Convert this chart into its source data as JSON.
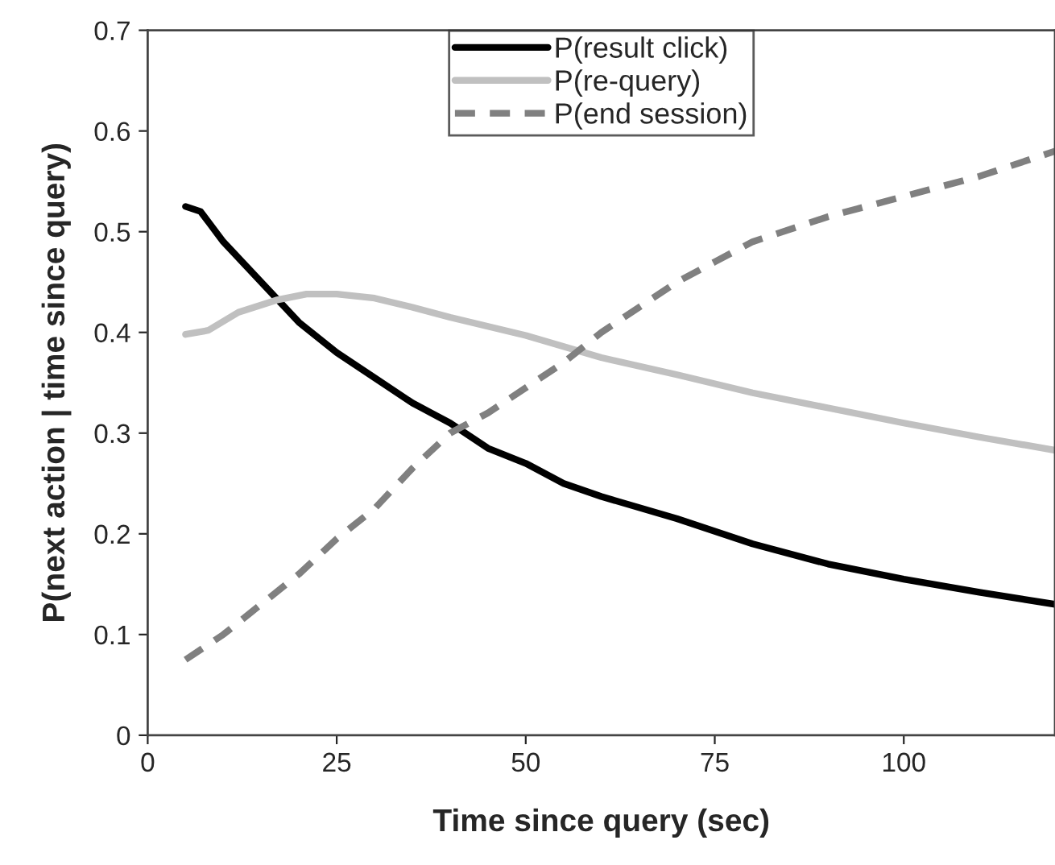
{
  "chart_data": {
    "type": "line",
    "xlabel": "Time since query (sec)",
    "ylabel": "P(next action | time since query)",
    "xlim": [
      0,
      120
    ],
    "xticks": [
      0,
      25,
      50,
      75,
      100
    ],
    "ylim": [
      0,
      0.7
    ],
    "yticks": [
      0,
      0.1,
      0.2,
      0.3,
      0.4,
      0.5,
      0.6,
      0.7
    ],
    "grid": false,
    "legend": "top",
    "marker": "none",
    "series": [
      {
        "name": "P(result click)",
        "color": "#000000",
        "line_style": "solid",
        "x": [
          5,
          7,
          10,
          15,
          20,
          25,
          30,
          35,
          40,
          45,
          50,
          55,
          60,
          70,
          80,
          90,
          100,
          110,
          120
        ],
        "values": [
          0.525,
          0.52,
          0.49,
          0.45,
          0.41,
          0.38,
          0.355,
          0.33,
          0.31,
          0.285,
          0.27,
          0.25,
          0.237,
          0.215,
          0.19,
          0.17,
          0.155,
          0.142,
          0.13
        ]
      },
      {
        "name": "P(re-query)",
        "color": "#c0c0c0",
        "line_style": "solid",
        "x": [
          5,
          8,
          12,
          17,
          21,
          25,
          30,
          35,
          40,
          50,
          60,
          70,
          80,
          90,
          100,
          110,
          120
        ],
        "values": [
          0.398,
          0.402,
          0.42,
          0.432,
          0.438,
          0.438,
          0.434,
          0.425,
          0.415,
          0.397,
          0.375,
          0.358,
          0.34,
          0.325,
          0.31,
          0.296,
          0.283
        ]
      },
      {
        "name": "P(end session)",
        "color": "#808080",
        "line_style": "dashed",
        "x": [
          5,
          10,
          15,
          20,
          25,
          30,
          35,
          40,
          45,
          50,
          55,
          60,
          65,
          70,
          75,
          80,
          90,
          100,
          110,
          120
        ],
        "values": [
          0.075,
          0.1,
          0.13,
          0.16,
          0.195,
          0.225,
          0.265,
          0.3,
          0.32,
          0.345,
          0.37,
          0.4,
          0.425,
          0.45,
          0.47,
          0.49,
          0.515,
          0.535,
          0.555,
          0.58
        ]
      }
    ]
  }
}
